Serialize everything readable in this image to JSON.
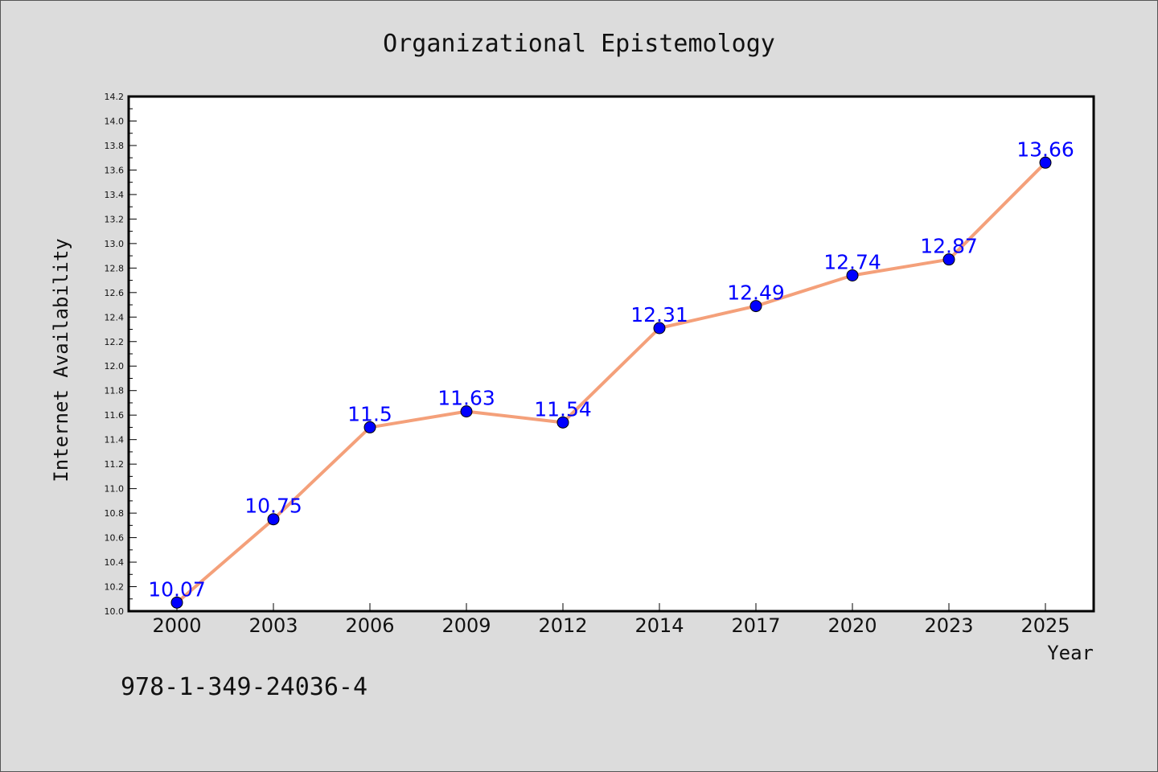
{
  "chart_data": {
    "type": "line",
    "title": "Organizational Epistemology",
    "xlabel": "Year",
    "ylabel": "Internet Availability",
    "categories": [
      "2000",
      "2003",
      "2006",
      "2009",
      "2012",
      "2014",
      "2017",
      "2020",
      "2023",
      "2025"
    ],
    "series": [
      {
        "values": [
          10.07,
          10.75,
          11.5,
          11.63,
          11.54,
          12.31,
          12.49,
          12.74,
          12.87,
          13.66
        ],
        "data_labels": [
          "10.07",
          "10.75",
          "11.5",
          "11.63",
          "11.54",
          "12.31",
          "12.49",
          "12.74",
          "12.87",
          "13.66"
        ],
        "line_color": "#f4a07a",
        "marker_color": "#0000ff",
        "label_color": "#0000ff"
      }
    ],
    "ylim": [
      10.0,
      14.2
    ],
    "yticks": [
      "10.0",
      "10.2",
      "10.4",
      "10.6",
      "10.8",
      "11.0",
      "11.2",
      "11.4",
      "11.6",
      "11.8",
      "12.0",
      "12.2",
      "12.4",
      "12.6",
      "12.8",
      "13.0",
      "13.2",
      "13.4",
      "13.6",
      "13.8",
      "14.0",
      "14.2"
    ],
    "grid": false,
    "legend": "none"
  },
  "footnote": "978-1-349-24036-4",
  "colors": {
    "background": "#dcdcdc",
    "plot_background": "#ffffff",
    "axes": "#000000"
  }
}
